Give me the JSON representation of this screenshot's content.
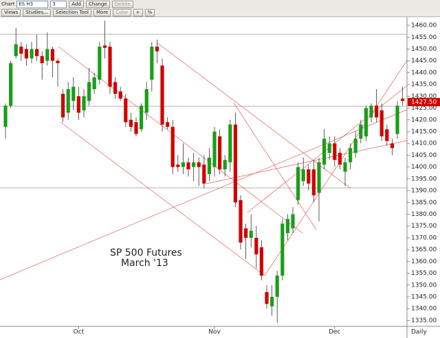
{
  "toolbar": {
    "title": "Chart",
    "symbol": "ES H3",
    "interval": "3",
    "buttons": [
      "Add",
      "Change",
      "Delete"
    ],
    "tools": [
      "Views",
      "Studies...",
      "Selection Tool",
      "More",
      "Color",
      "+",
      "%"
    ]
  },
  "chart_data": {
    "type": "candlestick",
    "annotation": [
      "SP 500 Futures",
      "March '13"
    ],
    "x_axis_label": "Daily",
    "categories": [
      null,
      null,
      null,
      null,
      null,
      null,
      null,
      null,
      null,
      null,
      null,
      null,
      null,
      null,
      "Oct",
      null,
      null,
      null,
      null,
      null,
      null,
      null,
      null,
      null,
      null,
      null,
      null,
      null,
      null,
      null,
      null,
      null,
      null,
      null,
      null,
      null,
      null,
      null,
      null,
      null,
      "Nov",
      null,
      null,
      null,
      null,
      null,
      null,
      null,
      null,
      null,
      null,
      null,
      null,
      null,
      null,
      null,
      null,
      null,
      null,
      null,
      null,
      null,
      null,
      "Dec",
      null,
      null,
      null,
      null,
      null,
      null,
      null,
      null,
      null,
      null,
      null,
      null,
      null
    ],
    "open": [
      1417,
      1426,
      1447,
      1451,
      1450,
      1446,
      1450,
      1447,
      1445,
      1450,
      1445,
      1431,
      1423,
      1428,
      1430,
      1424,
      1428,
      1433,
      1437,
      1451.5,
      1451,
      1436,
      1432,
      1429,
      1420,
      1419,
      1416,
      1423,
      1437,
      1451,
      1443,
      1419,
      1417,
      1401,
      1400,
      1402,
      1400,
      1402,
      1401,
      1397,
      1400,
      1413,
      1399,
      1402,
      1418,
      1386,
      1374,
      1370,
      1370,
      1366,
      1347,
      1341,
      1345,
      1354,
      1372,
      1374,
      1386,
      1394,
      1399,
      1399,
      1389,
      1401,
      1406,
      1410,
      1406,
      1398,
      1402,
      1406,
      1412,
      1413,
      1421,
      1426,
      1424,
      1416,
      1410,
      1414,
      1429
    ],
    "high": [
      1427,
      1445,
      1459,
      1453,
      1452,
      1453,
      1456,
      1449,
      1457,
      1451,
      1446,
      1433,
      1436,
      1438,
      1434,
      1433,
      1442,
      1440,
      1453,
      1462,
      1453,
      1438,
      1434,
      1431,
      1423,
      1421,
      1427,
      1436,
      1453,
      1454,
      1446,
      1421,
      1420,
      1405,
      1410,
      1404,
      1406,
      1404,
      1405,
      1408,
      1417,
      1416,
      1405,
      1420,
      1423,
      1388,
      1376,
      1380,
      1375,
      1369,
      1350,
      1350,
      1356,
      1378,
      1380,
      1383,
      1402,
      1404,
      1401,
      1403,
      1404,
      1416,
      1413,
      1413,
      1408,
      1404,
      1410,
      1415,
      1420,
      1426,
      1427,
      1433,
      1427,
      1418,
      1412,
      1428,
      1434
    ],
    "low": [
      1412,
      1425,
      1446,
      1445,
      1443,
      1444,
      1445,
      1437,
      1443,
      1438,
      1434,
      1419,
      1420,
      1424,
      1420,
      1421,
      1426,
      1431,
      1435,
      1446,
      1431,
      1429,
      1428,
      1417,
      1415,
      1413,
      1415,
      1420,
      1432,
      1444,
      1415,
      1416,
      1397,
      1398,
      1397,
      1396,
      1394,
      1392,
      1391,
      1394,
      1396,
      1397,
      1396,
      1398,
      1383,
      1365,
      1361,
      1366,
      1357,
      1352,
      1340,
      1337,
      1334,
      1352,
      1369,
      1372,
      1384,
      1392,
      1390,
      1385,
      1377,
      1399,
      1403,
      1400,
      1399,
      1392,
      1399,
      1404,
      1410,
      1411,
      1419,
      1419,
      1411,
      1409,
      1405,
      1412,
      1426
    ],
    "close": [
      1426,
      1444,
      1452,
      1448,
      1446,
      1450,
      1447,
      1444,
      1450,
      1445,
      1444,
      1421,
      1433,
      1434,
      1423,
      1430,
      1436,
      1438,
      1451,
      1450.5,
      1434,
      1431,
      1429,
      1419,
      1417,
      1414,
      1426,
      1433,
      1451,
      1449,
      1418,
      1417,
      1400,
      1400,
      1402,
      1399,
      1402,
      1400,
      1393,
      1404,
      1415,
      1399,
      1403,
      1418,
      1385,
      1368,
      1370,
      1373,
      1363,
      1354,
      1342,
      1345,
      1354,
      1376,
      1378,
      1380,
      1400,
      1399,
      1393,
      1388,
      1402,
      1412,
      1410,
      1403,
      1401,
      1402,
      1408,
      1412,
      1418,
      1425,
      1426,
      1421,
      1413,
      1411,
      1408,
      1426,
      1428
    ],
    "up_color": "#1a9e1a",
    "down_color": "#d00000",
    "last_price": {
      "value": 1427.5,
      "label": "1427.50"
    },
    "last_price_color": "#d00000",
    "ylim": [
      1332.5,
      1463.5
    ],
    "yticks": [
      {
        "value": 1335,
        "label": "1335.00"
      },
      {
        "value": 1340,
        "label": "1340.00"
      },
      {
        "value": 1345,
        "label": "1345.00"
      },
      {
        "value": 1350,
        "label": "1350.00"
      },
      {
        "value": 1355,
        "label": "1355.00"
      },
      {
        "value": 1360,
        "label": "1360.00"
      },
      {
        "value": 1365,
        "label": "1365.00"
      },
      {
        "value": 1370,
        "label": "1370.00"
      },
      {
        "value": 1375,
        "label": "1375.00"
      },
      {
        "value": 1380,
        "label": "1380.00"
      },
      {
        "value": 1385,
        "label": "1385.00"
      },
      {
        "value": 1390,
        "label": "1390.00"
      },
      {
        "value": 1395,
        "label": "1395.00"
      },
      {
        "value": 1400,
        "label": "1400.00"
      },
      {
        "value": 1405,
        "label": "1405.00"
      },
      {
        "value": 1410,
        "label": "1410.00"
      },
      {
        "value": 1415,
        "label": "1415.00"
      },
      {
        "value": 1420,
        "label": "1420.00"
      },
      {
        "value": 1425,
        "label": "1425.00"
      },
      {
        "value": 1430,
        "label": "1430.00"
      },
      {
        "value": 1435,
        "label": "1435.00"
      },
      {
        "value": 1440,
        "label": "1440.00"
      },
      {
        "value": 1445,
        "label": "1445.00"
      },
      {
        "value": 1450,
        "label": "1450.00"
      },
      {
        "value": 1455,
        "label": "1455.00"
      },
      {
        "value": 1460,
        "label": "1460.00"
      }
    ]
  }
}
